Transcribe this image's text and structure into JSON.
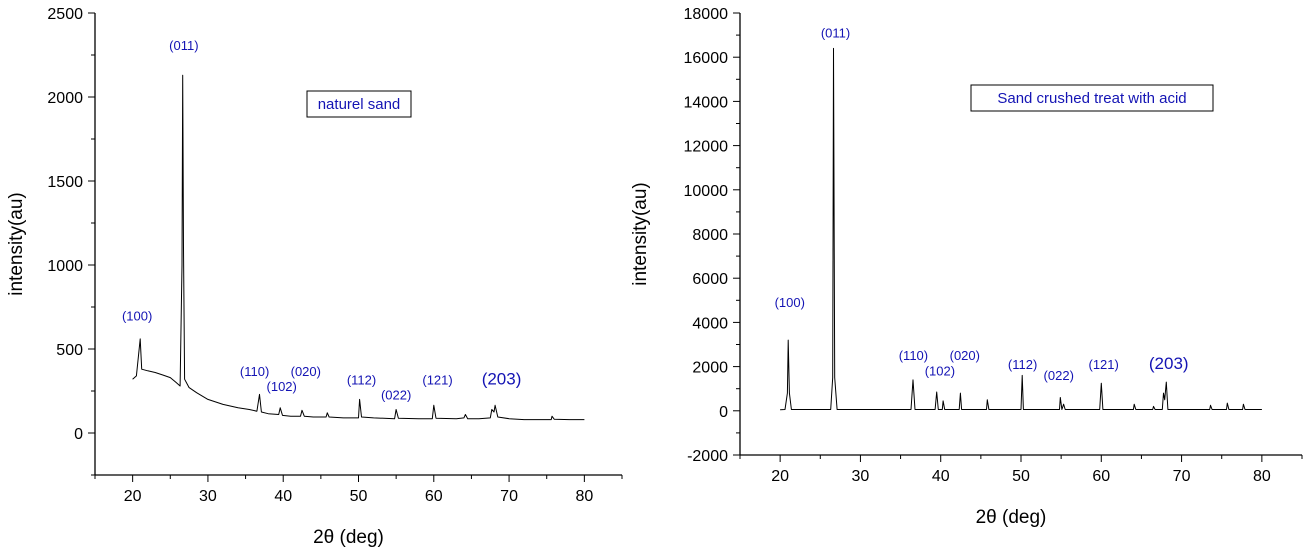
{
  "colors": {
    "axis": "#000000",
    "line": "#000000",
    "label": "#1414b4"
  },
  "chart_data": [
    {
      "type": "line",
      "title": "",
      "xlabel": "2θ (deg)",
      "ylabel": "intensity(au)",
      "xlim": [
        15,
        85
      ],
      "ylim": [
        -250,
        2500
      ],
      "xticks": [
        20,
        30,
        40,
        50,
        60,
        70,
        80
      ],
      "yticks": [
        0,
        500,
        1000,
        1500,
        2000,
        2500
      ],
      "legend": "naturel sand",
      "series": [
        {
          "points": [
            [
              20,
              320
            ],
            [
              20.5,
              340
            ],
            [
              21.0,
              560
            ],
            [
              21.2,
              380
            ],
            [
              22,
              370
            ],
            [
              23,
              360
            ],
            [
              24,
              345
            ],
            [
              25,
              330
            ],
            [
              25.8,
              300
            ],
            [
              26.3,
              280
            ],
            [
              26.55,
              1000
            ],
            [
              26.65,
              2130
            ],
            [
              26.75,
              1100
            ],
            [
              26.9,
              320
            ],
            [
              27.5,
              270
            ],
            [
              28.5,
              240
            ],
            [
              30,
              200
            ],
            [
              32,
              170
            ],
            [
              34,
              150
            ],
            [
              35.5,
              140
            ],
            [
              36.5,
              130
            ],
            [
              36.85,
              230
            ],
            [
              37.1,
              125
            ],
            [
              38,
              115
            ],
            [
              39.4,
              110
            ],
            [
              39.6,
              150
            ],
            [
              39.9,
              105
            ],
            [
              41,
              100
            ],
            [
              42.3,
              100
            ],
            [
              42.5,
              135
            ],
            [
              42.8,
              100
            ],
            [
              44,
              95
            ],
            [
              45.7,
              95
            ],
            [
              45.85,
              120
            ],
            [
              46.1,
              95
            ],
            [
              48,
              90
            ],
            [
              50.0,
              90
            ],
            [
              50.15,
              200
            ],
            [
              50.4,
              95
            ],
            [
              52,
              90
            ],
            [
              54.8,
              85
            ],
            [
              55.0,
              140
            ],
            [
              55.3,
              88
            ],
            [
              58,
              85
            ],
            [
              59.8,
              85
            ],
            [
              60.0,
              165
            ],
            [
              60.3,
              88
            ],
            [
              63,
              85
            ],
            [
              64.0,
              90
            ],
            [
              64.2,
              110
            ],
            [
              64.5,
              85
            ],
            [
              66,
              85
            ],
            [
              67.5,
              90
            ],
            [
              67.7,
              140
            ],
            [
              68.0,
              125
            ],
            [
              68.15,
              165
            ],
            [
              68.5,
              95
            ],
            [
              70,
              85
            ],
            [
              72,
              80
            ],
            [
              74,
              80
            ],
            [
              75.6,
              80
            ],
            [
              75.7,
              100
            ],
            [
              76,
              82
            ],
            [
              78,
              80
            ],
            [
              80,
              80
            ]
          ]
        }
      ],
      "annotations": [
        {
          "text": "(100)",
          "x": 20.6,
          "y": 670
        },
        {
          "text": "(011)",
          "x": 26.8,
          "y": 2280
        },
        {
          "text": "(110)",
          "x": 36.2,
          "y": 340
        },
        {
          "text": "(102)",
          "x": 39.8,
          "y": 250
        },
        {
          "text": "(020)",
          "x": 43.0,
          "y": 340
        },
        {
          "text": "(112)",
          "x": 50.4,
          "y": 290
        },
        {
          "text": "(022)",
          "x": 55.0,
          "y": 200
        },
        {
          "text": "(121)",
          "x": 60.5,
          "y": 290
        },
        {
          "text": "(203)",
          "x": 69.0,
          "y": 290,
          "big": true
        }
      ]
    },
    {
      "type": "line",
      "title": "",
      "xlabel": "2θ (deg)",
      "ylabel": "intensity(au)",
      "xlim": [
        15,
        85
      ],
      "ylim": [
        -2000,
        18000
      ],
      "xticks": [
        20,
        30,
        40,
        50,
        60,
        70,
        80
      ],
      "yticks": [
        -2000,
        0,
        2000,
        4000,
        6000,
        8000,
        10000,
        12000,
        14000,
        16000,
        18000
      ],
      "legend": "Sand crushed treat with acid",
      "series": [
        {
          "points": [
            [
              20,
              50
            ],
            [
              20.6,
              60
            ],
            [
              20.9,
              800
            ],
            [
              21.0,
              3200
            ],
            [
              21.15,
              800
            ],
            [
              21.4,
              60
            ],
            [
              26.3,
              60
            ],
            [
              26.55,
              1500
            ],
            [
              26.65,
              16400
            ],
            [
              26.8,
              1500
            ],
            [
              27.1,
              60
            ],
            [
              36.3,
              60
            ],
            [
              36.55,
              1400
            ],
            [
              36.8,
              60
            ],
            [
              39.3,
              60
            ],
            [
              39.5,
              850
            ],
            [
              39.7,
              60
            ],
            [
              40.2,
              60
            ],
            [
              40.3,
              450
            ],
            [
              40.5,
              60
            ],
            [
              42.3,
              60
            ],
            [
              42.45,
              800
            ],
            [
              42.6,
              60
            ],
            [
              45.7,
              60
            ],
            [
              45.8,
              500
            ],
            [
              46.0,
              60
            ],
            [
              50.0,
              60
            ],
            [
              50.15,
              1600
            ],
            [
              50.3,
              60
            ],
            [
              54.8,
              60
            ],
            [
              54.9,
              600
            ],
            [
              55.1,
              60
            ],
            [
              55.3,
              300
            ],
            [
              55.5,
              60
            ],
            [
              59.8,
              60
            ],
            [
              60.0,
              1250
            ],
            [
              60.2,
              60
            ],
            [
              64.0,
              60
            ],
            [
              64.1,
              300
            ],
            [
              64.3,
              60
            ],
            [
              66.4,
              60
            ],
            [
              66.5,
              200
            ],
            [
              66.7,
              60
            ],
            [
              67.6,
              60
            ],
            [
              67.75,
              800
            ],
            [
              67.9,
              500
            ],
            [
              68.1,
              1300
            ],
            [
              68.3,
              60
            ],
            [
              73.5,
              60
            ],
            [
              73.6,
              250
            ],
            [
              73.8,
              60
            ],
            [
              75.6,
              60
            ],
            [
              75.7,
              350
            ],
            [
              75.9,
              60
            ],
            [
              77.6,
              60
            ],
            [
              77.7,
              300
            ],
            [
              77.9,
              60
            ],
            [
              80,
              60
            ]
          ]
        }
      ],
      "annotations": [
        {
          "text": "(100)",
          "x": 21.2,
          "y": 4700
        },
        {
          "text": "(011)",
          "x": 26.9,
          "y": 16900
        },
        {
          "text": "(110)",
          "x": 36.6,
          "y": 2300
        },
        {
          "text": "(102)",
          "x": 39.9,
          "y": 1600
        },
        {
          "text": "(020)",
          "x": 43.0,
          "y": 2300
        },
        {
          "text": "(112)",
          "x": 50.2,
          "y": 1900
        },
        {
          "text": "(022)",
          "x": 54.7,
          "y": 1400
        },
        {
          "text": "(121)",
          "x": 60.3,
          "y": 1900
        },
        {
          "text": "(203)",
          "x": 68.4,
          "y": 1900,
          "big": true
        }
      ]
    }
  ]
}
